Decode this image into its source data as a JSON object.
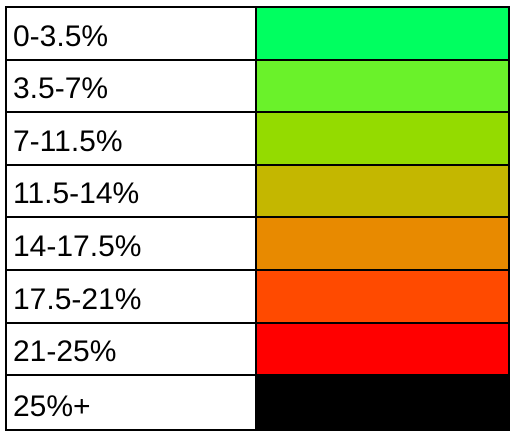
{
  "legend": {
    "rows": [
      {
        "label": "0-3.5%",
        "color": "#00ff60"
      },
      {
        "label": "3.5-7%",
        "color": "#6af22a"
      },
      {
        "label": "7-11.5%",
        "color": "#94db00"
      },
      {
        "label": "11.5-14%",
        "color": "#c4b700"
      },
      {
        "label": "14-17.5%",
        "color": "#e88a00"
      },
      {
        "label": "17.5-21%",
        "color": "#ff4a00"
      },
      {
        "label": "21-25%",
        "color": "#ff0000"
      },
      {
        "label": "25%+",
        "color": "#000000"
      }
    ]
  }
}
